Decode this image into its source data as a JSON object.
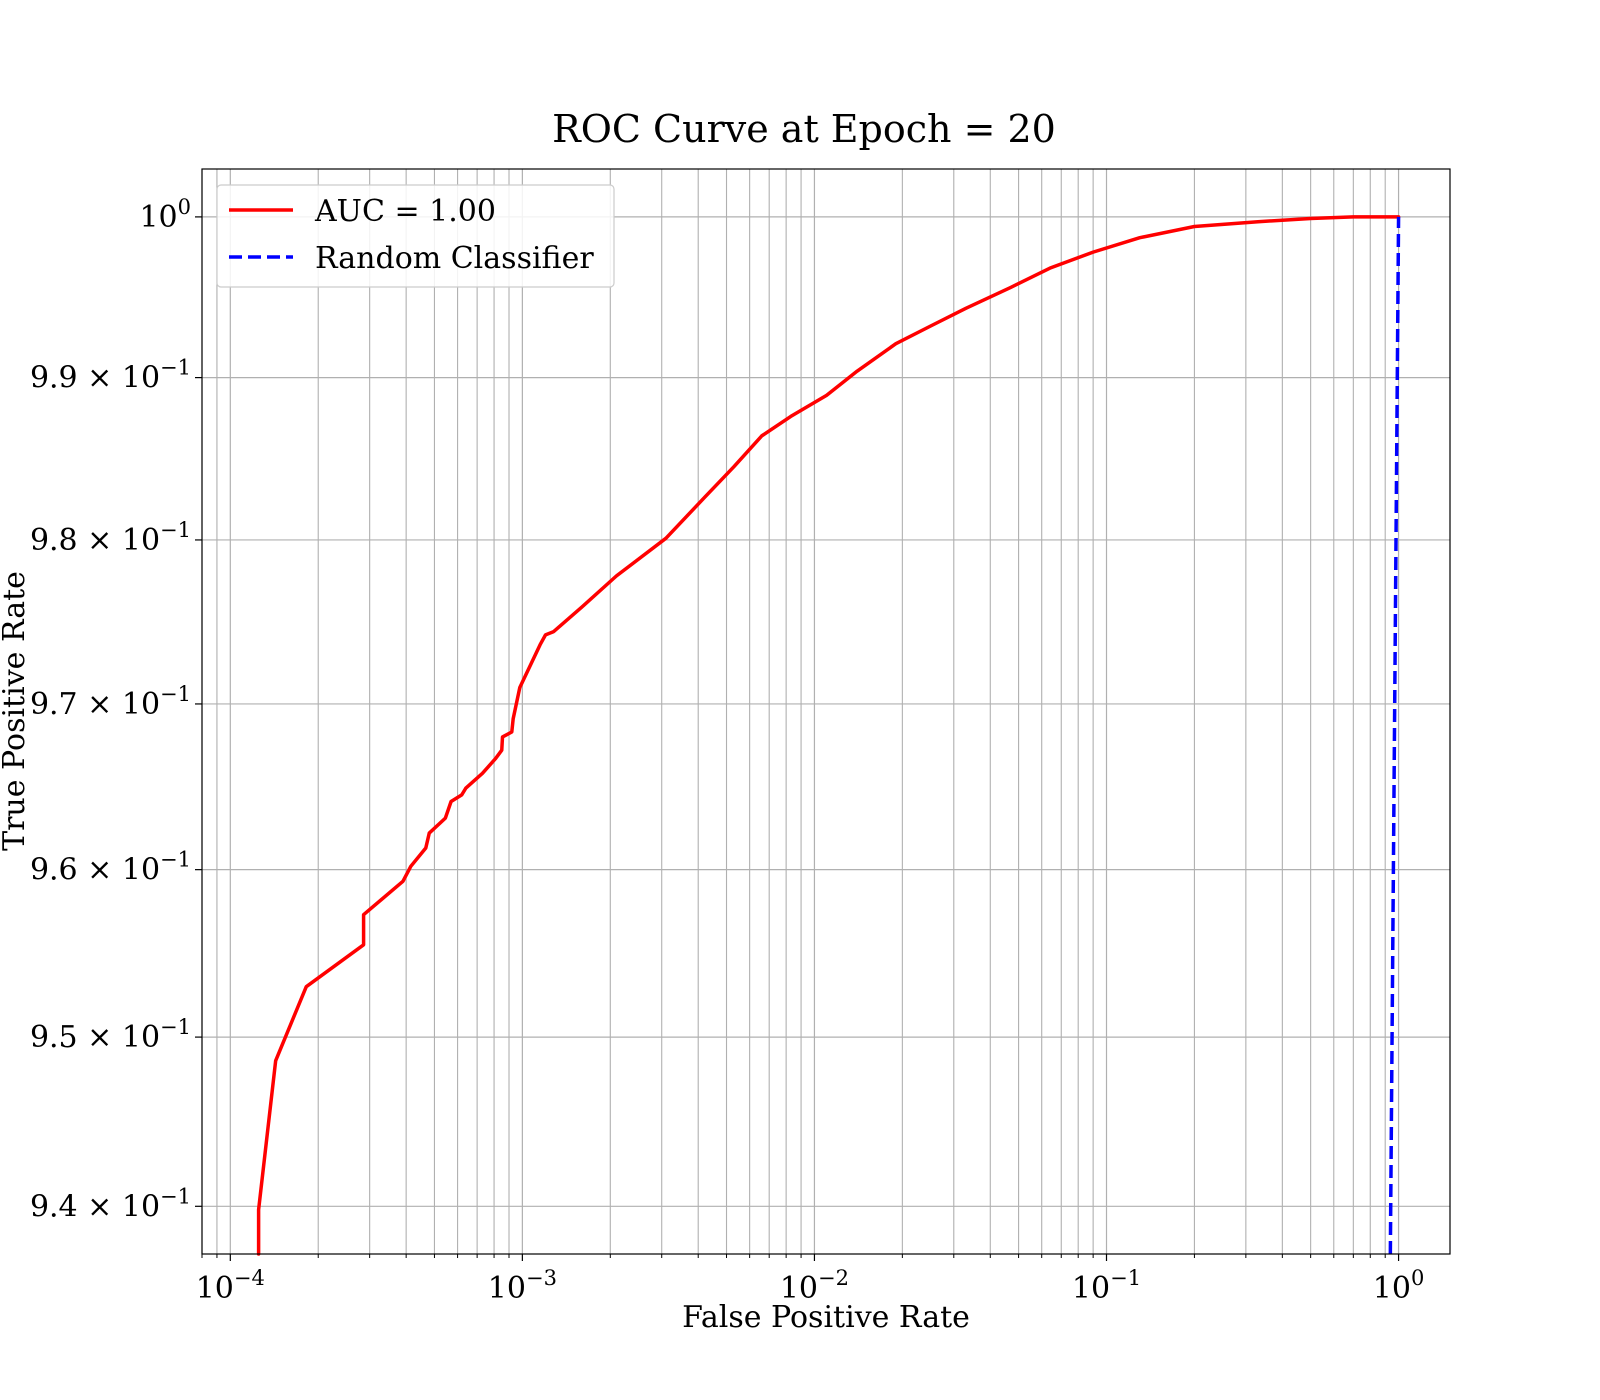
{
  "chart_data": {
    "type": "line",
    "title": "ROC Curve at Epoch = 20",
    "xlabel": "False Positive Rate",
    "ylabel": "True Positive Rate",
    "xscale": "log",
    "yscale": "log",
    "xlim": [
      8e-05,
      1.5
    ],
    "ylim": [
      0.9372,
      1.003
    ],
    "grid": true,
    "grid_minor": true,
    "legend_position": "upper left",
    "x_ticks": [
      {
        "value": 0.0001,
        "mant": "10",
        "exp": "−4"
      },
      {
        "value": 0.001,
        "mant": "10",
        "exp": "−3"
      },
      {
        "value": 0.01,
        "mant": "10",
        "exp": "−2"
      },
      {
        "value": 0.1,
        "mant": "10",
        "exp": "−1"
      },
      {
        "value": 1,
        "mant": "10",
        "exp": "0"
      }
    ],
    "y_ticks": [
      {
        "value": 1.0,
        "mant": "10",
        "exp": "0"
      },
      {
        "value": 0.99,
        "mant": "9.9 × 10",
        "exp": "−1"
      },
      {
        "value": 0.98,
        "mant": "9.8 × 10",
        "exp": "−1"
      },
      {
        "value": 0.97,
        "mant": "9.7 × 10",
        "exp": "−1"
      },
      {
        "value": 0.96,
        "mant": "9.6 × 10",
        "exp": "−1"
      },
      {
        "value": 0.95,
        "mant": "9.5 × 10",
        "exp": "−1"
      },
      {
        "value": 0.94,
        "mant": "9.4 × 10",
        "exp": "−1"
      }
    ],
    "series": [
      {
        "name": "AUC = 1.00",
        "color": "#ff0000",
        "style": "solid",
        "x": [
          0.000125,
          0.000125,
          0.000143,
          0.000182,
          0.000286,
          0.000286,
          0.00039,
          0.000415,
          0.000467,
          0.00048,
          0.000545,
          0.00057,
          0.00062,
          0.00064,
          0.00073,
          0.00081,
          0.00085,
          0.000855,
          0.00092,
          0.00093,
          0.00098,
          0.00115,
          0.0012,
          0.00128,
          0.0016,
          0.0021,
          0.0031,
          0.0042,
          0.0053,
          0.0066,
          0.0083,
          0.011,
          0.014,
          0.019,
          0.025,
          0.033,
          0.047,
          0.064,
          0.09,
          0.13,
          0.2,
          0.33,
          0.5,
          0.7,
          1.0
        ],
        "y": [
          0.9372,
          0.9398,
          0.9486,
          0.953,
          0.9555,
          0.9573,
          0.9593,
          0.9602,
          0.9613,
          0.9622,
          0.9631,
          0.9641,
          0.9645,
          0.9649,
          0.9658,
          0.9667,
          0.9672,
          0.968,
          0.9683,
          0.9691,
          0.971,
          0.9736,
          0.9742,
          0.9744,
          0.9759,
          0.9778,
          0.9801,
          0.9826,
          0.9845,
          0.9864,
          0.9876,
          0.9889,
          0.9904,
          0.9921,
          0.9932,
          0.9943,
          0.9956,
          0.9968,
          0.9978,
          0.9987,
          0.9994,
          0.9997,
          0.9999,
          1.0,
          1.0
        ]
      },
      {
        "name": "Random Classifier",
        "color": "#0000ff",
        "style": "dashed",
        "x": [
          0.9372,
          1.0
        ],
        "y": [
          0.9372,
          1.0
        ]
      }
    ]
  }
}
